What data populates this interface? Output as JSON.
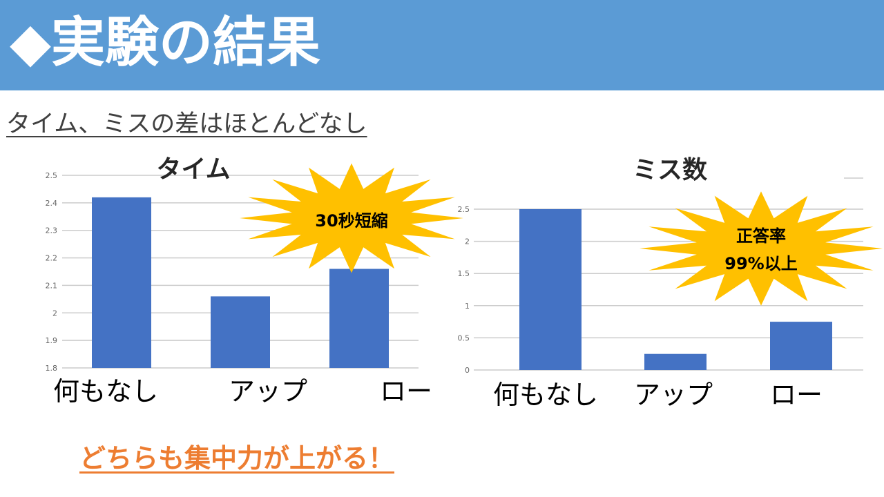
{
  "header": {
    "title": "◆実験の結果"
  },
  "subtitle": "タイム、ミスの差はほとんどなし",
  "conclusion": "どちらも集中力が上がる！",
  "colors": {
    "header_bg": "#5b9bd5",
    "bar": "#4472c4",
    "burst": "#ffc000",
    "accent": "#ed7d31"
  },
  "chart_data": [
    {
      "type": "bar",
      "title": "タイム",
      "categories": [
        "何もなし",
        "アップ",
        "ロー"
      ],
      "values": [
        2.42,
        2.06,
        2.16
      ],
      "ylim": [
        1.8,
        2.5
      ],
      "yticks": [
        "1.8",
        "1.9",
        "2",
        "2.1",
        "2.2",
        "2.3",
        "2.4",
        "2.5"
      ],
      "grid": true,
      "annotation": [
        "30秒短縮"
      ]
    },
    {
      "type": "bar",
      "title": "ミス数",
      "categories": [
        "何もなし",
        "アップ",
        "ロー"
      ],
      "values": [
        2.5,
        0.25,
        0.75
      ],
      "ylim": [
        0,
        2.5
      ],
      "yticks": [
        "0",
        "0.5",
        "1",
        "1.5",
        "2",
        "2.5"
      ],
      "grid": true,
      "annotation": [
        "正答率",
        "99%以上"
      ]
    }
  ]
}
